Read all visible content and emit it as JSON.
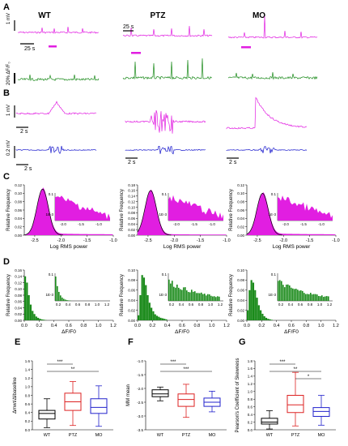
{
  "panel_labels": {
    "A": "A",
    "B": "B",
    "C": "C",
    "D": "D",
    "E": "E",
    "F": "F",
    "G": "G"
  },
  "colors": {
    "ephys": "#e11ee1",
    "calcium": "#1a8a1a",
    "filtered": "#1515cc",
    "fit": "#000000",
    "wt": "#000000",
    "ptz": "#dd2222",
    "mo": "#2222cc"
  },
  "panel_a": {
    "conditions": [
      "WT",
      "PTZ",
      "MO"
    ],
    "scale_ephys": "1 mV",
    "scale_time_1": "25 s",
    "scale_time_2": "25 s",
    "scale_calcium": "20% ΔF/F₀"
  },
  "panel_b": {
    "scale_voltage": "1 mV",
    "scale_filtered": "0.2 mV",
    "scale_time": "2 s"
  },
  "chart_data": [
    {
      "type": "area",
      "panel": "C",
      "title": "",
      "xlabel": "Log RMS power",
      "ylabel": "Relative Frequency",
      "inset_ytick_labels": [
        "0.1",
        "1E-3"
      ],
      "plots": [
        {
          "condition": "WT",
          "xlim": [
            -2.7,
            -1.0
          ],
          "ylim": [
            0,
            0.12
          ],
          "xticks": [
            "-2.5",
            "-2.0",
            "-1.5",
            "-1.0"
          ],
          "yticks": [
            "0.00",
            "0.02",
            "0.04",
            "0.06",
            "0.08",
            "0.10",
            "0.12"
          ],
          "mode": -2.35,
          "peak": 0.11,
          "inset_xticks": [
            "-2.0",
            "-1.5",
            "-1.0"
          ]
        },
        {
          "condition": "PTZ",
          "xlim": [
            -2.7,
            -1.0
          ],
          "ylim": [
            0,
            0.18
          ],
          "xticks": [
            "-2.5",
            "-2.0",
            "-1.5",
            "-1.0"
          ],
          "yticks": [
            "0.00",
            "0.02",
            "0.04",
            "0.06",
            "0.08",
            "0.10",
            "0.12",
            "0.14",
            "0.16",
            "0.18"
          ],
          "mode": -2.45,
          "peak": 0.16,
          "inset_xticks": [
            "-2.0",
            "-1.5",
            "-1.0"
          ]
        },
        {
          "condition": "MO",
          "xlim": [
            -2.7,
            -1.0
          ],
          "ylim": [
            0,
            0.12
          ],
          "xticks": [
            "-2.5",
            "-2.0",
            "-1.5",
            "-1.0"
          ],
          "yticks": [
            "0.00",
            "0.02",
            "0.04",
            "0.06",
            "0.08",
            "0.10",
            "0.12"
          ],
          "mode": -2.4,
          "peak": 0.1,
          "inset_xticks": [
            "-2.0",
            "-1.5",
            "-1.0"
          ]
        }
      ]
    },
    {
      "type": "bar",
      "panel": "D",
      "title": "",
      "xlabel": "ΔF/F0",
      "ylabel": "Relative Frequency",
      "inset_ytick_labels": [
        "0.1",
        "1E-3"
      ],
      "plots": [
        {
          "condition": "WT",
          "xlim": [
            0,
            1.2
          ],
          "ylim": [
            0,
            0.16
          ],
          "xticks": [
            "0.0",
            "0.2",
            "0.4",
            "0.6",
            "0.8",
            "1.0",
            "1.2"
          ],
          "yticks": [
            "0.00",
            "0.02",
            "0.04",
            "0.06",
            "0.08",
            "0.10",
            "0.12",
            "0.14",
            "0.16"
          ],
          "inset_xticks": [
            "0.2",
            "0.4",
            "0.6",
            "0.8",
            "1.0",
            "1.2"
          ],
          "bars": [
            0.14,
            0.12,
            0.08,
            0.05,
            0.03,
            0.02,
            0.012,
            0.008,
            0.005,
            0.003,
            0.002,
            0.001
          ]
        },
        {
          "condition": "PTZ",
          "xlim": [
            0,
            1.2
          ],
          "ylim": [
            0,
            0.1
          ],
          "xticks": [
            "0.0",
            "0.2",
            "0.4",
            "0.6",
            "0.8",
            "1.0",
            "1.2"
          ],
          "yticks": [
            "0.00",
            "0.02",
            "0.04",
            "0.06",
            "0.08",
            "0.10"
          ],
          "inset_xticks": [
            "0.2",
            "0.4",
            "0.6",
            "0.8",
            "1.0",
            "1.2"
          ],
          "bars": [
            0.01,
            0.05,
            0.09,
            0.085,
            0.07,
            0.05,
            0.035,
            0.025,
            0.018,
            0.012,
            0.009,
            0.007,
            0.005,
            0.004,
            0.003,
            0.002
          ]
        },
        {
          "condition": "MO",
          "xlim": [
            0,
            1.2
          ],
          "ylim": [
            0,
            0.1
          ],
          "xticks": [
            "0.0",
            "0.2",
            "0.4",
            "0.6",
            "0.8",
            "1.0",
            "1.2"
          ],
          "yticks": [
            "0.00",
            "0.02",
            "0.04",
            "0.06",
            "0.08",
            "0.10"
          ],
          "inset_xticks": [
            "0.2",
            "0.4",
            "0.6",
            "0.8",
            "1.0",
            "1.2"
          ],
          "bars": [
            0.02,
            0.06,
            0.08,
            0.075,
            0.06,
            0.045,
            0.03,
            0.02,
            0.013,
            0.008,
            0.005,
            0.003,
            0.002,
            0.001
          ]
        }
      ]
    },
    {
      "type": "box",
      "panel": "E",
      "ylabel": "Δmwt/ΔIbaseline",
      "ylim": [
        0,
        1.6
      ],
      "yticks": [
        "0.0",
        "0.2",
        "0.4",
        "0.6",
        "0.8",
        "1.0",
        "1.2",
        "1.4",
        "1.6"
      ],
      "categories": [
        "WT",
        "PTZ",
        "MO"
      ],
      "boxes": [
        {
          "min": 0.05,
          "q1": 0.25,
          "median": 0.38,
          "q3": 0.45,
          "max": 0.72
        },
        {
          "min": 0.1,
          "q1": 0.45,
          "median": 0.65,
          "q3": 0.85,
          "max": 1.12
        },
        {
          "min": 0.08,
          "q1": 0.38,
          "median": 0.52,
          "q3": 0.72,
          "max": 1.02
        }
      ],
      "significance": [
        {
          "pair": [
            "WT",
            "PTZ"
          ],
          "label": "***"
        },
        {
          "pair": [
            "WT",
            "MO"
          ],
          "label": "**"
        }
      ]
    },
    {
      "type": "box",
      "panel": "F",
      "ylabel": "MM mean",
      "ylim": [
        -3.5,
        -1.0
      ],
      "yticks": [
        "-3.5",
        "-3.0",
        "-2.5",
        "-2.0",
        "-1.5",
        "-1.0"
      ],
      "categories": [
        "WT",
        "PTZ",
        "MO"
      ],
      "boxes": [
        {
          "min": -2.45,
          "q1": -2.3,
          "median": -2.2,
          "q3": -2.05,
          "max": -1.95
        },
        {
          "min": -3.05,
          "q1": -2.65,
          "median": -2.4,
          "q3": -2.2,
          "max": -1.85
        },
        {
          "min": -2.85,
          "q1": -2.65,
          "median": -2.5,
          "q3": -2.35,
          "max": -2.1
        }
      ],
      "significance": [
        {
          "pair": [
            "WT",
            "PTZ"
          ],
          "label": "***"
        },
        {
          "pair": [
            "WT",
            "MO"
          ],
          "label": "***"
        }
      ]
    },
    {
      "type": "box",
      "panel": "G",
      "ylabel": "Pearson's Coefficient of Skewness",
      "ylim": [
        0,
        1.8
      ],
      "yticks": [
        "0.0",
        "0.2",
        "0.4",
        "0.6",
        "0.8",
        "1.0",
        "1.2",
        "1.4",
        "1.6",
        "1.8"
      ],
      "categories": [
        "WT",
        "PTZ",
        "MO"
      ],
      "boxes": [
        {
          "min": 0.02,
          "q1": 0.15,
          "median": 0.2,
          "q3": 0.3,
          "max": 0.5
        },
        {
          "min": 0.1,
          "q1": 0.45,
          "median": 0.65,
          "q3": 0.9,
          "max": 1.5
        },
        {
          "min": 0.12,
          "q1": 0.35,
          "median": 0.48,
          "q3": 0.58,
          "max": 0.9
        }
      ],
      "significance": [
        {
          "pair": [
            "WT",
            "PTZ"
          ],
          "label": "***"
        },
        {
          "pair": [
            "WT",
            "MO"
          ],
          "label": "**"
        },
        {
          "pair": [
            "PTZ",
            "MO"
          ],
          "label": "*"
        }
      ]
    }
  ]
}
